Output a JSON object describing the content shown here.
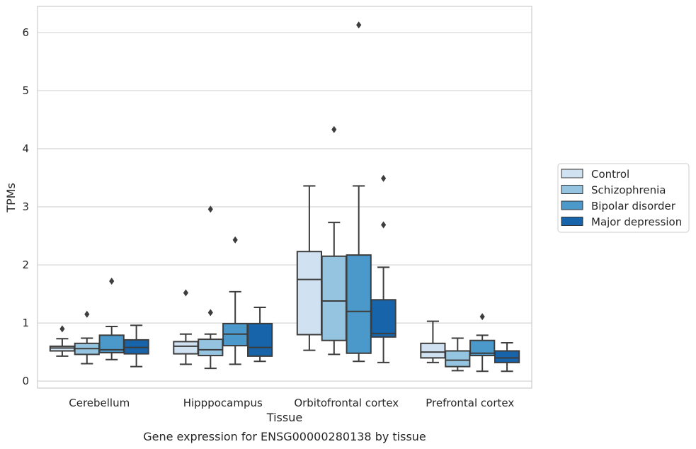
{
  "chart_data": {
    "type": "boxplot",
    "title": "",
    "caption": "Gene expression for ENSG00000280138 by tissue",
    "xlabel": "Tissue",
    "ylabel": "TPMs",
    "ylim": [
      -0.12,
      6.45
    ],
    "yticks": [
      0,
      1,
      2,
      3,
      4,
      5,
      6
    ],
    "grid": "horizontal",
    "legend_position": "right",
    "categories": [
      "Cerebellum",
      "Hipppocampus",
      "Orbitofrontal cortex",
      "Prefrontal cortex"
    ],
    "series": [
      {
        "name": "Control",
        "color": "#d0e1f2",
        "boxes": [
          {
            "whisker_low": 0.43,
            "q1": 0.52,
            "median": 0.57,
            "q3": 0.6,
            "whisker_high": 0.73,
            "outliers": [
              0.9
            ]
          },
          {
            "whisker_low": 0.29,
            "q1": 0.47,
            "median": 0.6,
            "q3": 0.68,
            "whisker_high": 0.81,
            "outliers": [
              1.52
            ]
          },
          {
            "whisker_low": 0.53,
            "q1": 0.8,
            "median": 1.75,
            "q3": 2.23,
            "whisker_high": 3.36,
            "outliers": []
          },
          {
            "whisker_low": 0.32,
            "q1": 0.4,
            "median": 0.5,
            "q3": 0.65,
            "whisker_high": 1.03,
            "outliers": []
          }
        ]
      },
      {
        "name": "Schizophrenia",
        "color": "#94c4df",
        "boxes": [
          {
            "whisker_low": 0.3,
            "q1": 0.46,
            "median": 0.56,
            "q3": 0.65,
            "whisker_high": 0.74,
            "outliers": [
              1.15
            ]
          },
          {
            "whisker_low": 0.22,
            "q1": 0.44,
            "median": 0.54,
            "q3": 0.72,
            "whisker_high": 0.81,
            "outliers": [
              1.18,
              2.96
            ]
          },
          {
            "whisker_low": 0.46,
            "q1": 0.7,
            "median": 1.38,
            "q3": 2.15,
            "whisker_high": 2.73,
            "outliers": [
              4.33
            ]
          },
          {
            "whisker_low": 0.18,
            "q1": 0.25,
            "median": 0.36,
            "q3": 0.52,
            "whisker_high": 0.74,
            "outliers": []
          }
        ]
      },
      {
        "name": "Bipolar disorder",
        "color": "#4b98ca",
        "boxes": [
          {
            "whisker_low": 0.37,
            "q1": 0.49,
            "median": 0.54,
            "q3": 0.79,
            "whisker_high": 0.94,
            "outliers": [
              1.72
            ]
          },
          {
            "whisker_low": 0.29,
            "q1": 0.61,
            "median": 0.81,
            "q3": 0.99,
            "whisker_high": 1.54,
            "outliers": [
              2.43
            ]
          },
          {
            "whisker_low": 0.34,
            "q1": 0.48,
            "median": 1.2,
            "q3": 2.17,
            "whisker_high": 3.36,
            "outliers": [
              6.13
            ]
          },
          {
            "whisker_low": 0.17,
            "q1": 0.44,
            "median": 0.48,
            "q3": 0.7,
            "whisker_high": 0.79,
            "outliers": [
              1.11
            ]
          }
        ]
      },
      {
        "name": "Major depression",
        "color": "#1764ab",
        "boxes": [
          {
            "whisker_low": 0.25,
            "q1": 0.47,
            "median": 0.58,
            "q3": 0.71,
            "whisker_high": 0.96,
            "outliers": []
          },
          {
            "whisker_low": 0.34,
            "q1": 0.43,
            "median": 0.58,
            "q3": 0.99,
            "whisker_high": 1.27,
            "outliers": []
          },
          {
            "whisker_low": 0.32,
            "q1": 0.76,
            "median": 0.82,
            "q3": 1.4,
            "whisker_high": 1.96,
            "outliers": [
              2.69,
              3.49
            ]
          },
          {
            "whisker_low": 0.17,
            "q1": 0.32,
            "median": 0.4,
            "q3": 0.52,
            "whisker_high": 0.66,
            "outliers": []
          }
        ]
      }
    ]
  }
}
